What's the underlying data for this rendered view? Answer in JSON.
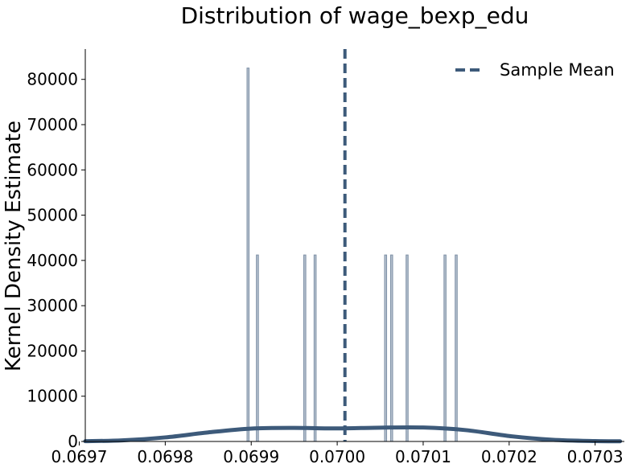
{
  "chart_data": {
    "type": "histogram",
    "title": "Distribution of wage_bexp_edu",
    "xlabel": "",
    "ylabel": "Kernel Density Estimate",
    "xlim": [
      0.069707,
      0.070334
    ],
    "ylim": [
      0,
      86700
    ],
    "x_ticks": [
      0.0697,
      0.0698,
      0.0699,
      0.07,
      0.0701,
      0.0702,
      0.0703
    ],
    "x_tick_labels": [
      "0.0697",
      "0.0698",
      "0.0699",
      "0.0700",
      "0.0701",
      "0.0702",
      "0.0703"
    ],
    "y_ticks": [
      0,
      10000,
      20000,
      30000,
      40000,
      50000,
      60000,
      70000,
      80000
    ],
    "y_tick_labels": [
      "0",
      "10000",
      "20000",
      "30000",
      "40000",
      "50000",
      "60000",
      "70000",
      "80000"
    ],
    "bin_width": 2.4e-06,
    "bars": [
      {
        "x": 0.0698963,
        "density": 82500
      },
      {
        "x": 0.0699072,
        "density": 41200
      },
      {
        "x": 0.0699623,
        "density": 41200
      },
      {
        "x": 0.0699743,
        "density": 41200
      },
      {
        "x": 0.0700563,
        "density": 41200
      },
      {
        "x": 0.0700633,
        "density": 41200
      },
      {
        "x": 0.0700813,
        "density": 41200
      },
      {
        "x": 0.0701254,
        "density": 41200
      },
      {
        "x": 0.0701384,
        "density": 41200
      }
    ],
    "kde": {
      "x": [
        0.069707,
        0.06975,
        0.0698,
        0.06985,
        0.0699,
        0.06995,
        0.07,
        0.07005,
        0.0701,
        0.07015,
        0.0702,
        0.07025,
        0.0703,
        0.070329
      ],
      "y": [
        60,
        250,
        900,
        2000,
        2850,
        3000,
        2880,
        3050,
        3080,
        2500,
        1200,
        380,
        80,
        40
      ]
    },
    "mean": 0.070009,
    "legend": {
      "label": "Sample Mean",
      "position": "top-right"
    },
    "colors": {
      "bar_fill": "#b4c0cd",
      "bar_edge": "#7e90a6",
      "kde": "#3d5a7a",
      "mean": "#3d5a7a"
    },
    "grid": false
  }
}
